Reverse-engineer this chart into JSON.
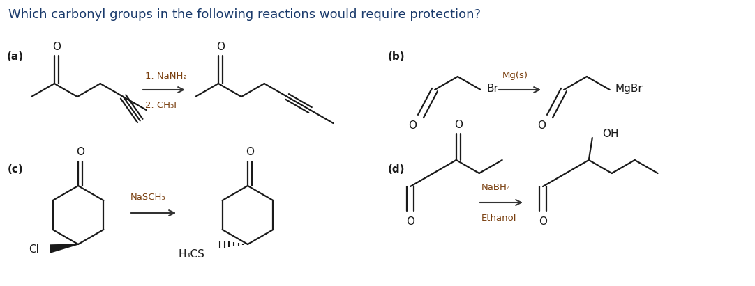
{
  "title": "Which carbonyl groups in the following reactions would require protection?",
  "title_color": "#1a3a6b",
  "title_fontsize": 13.0,
  "bg_color": "#ffffff",
  "label_a": "(a)",
  "label_b": "(b)",
  "label_c": "(c)",
  "label_d": "(d)",
  "reaction_a_reagents": [
    "1. NaNH₂",
    "2. CH₃I"
  ],
  "reaction_b_reagents": [
    "Mg(s)"
  ],
  "reaction_c_reagents": [
    "NaSCH₃"
  ],
  "reaction_d_reagents": [
    "NaBH₄",
    "Ethanol"
  ],
  "line_color": "#1a1a1a",
  "reagent_color": "#7a4010",
  "arrow_color": "#333333",
  "label_color": "#1a1a1a"
}
